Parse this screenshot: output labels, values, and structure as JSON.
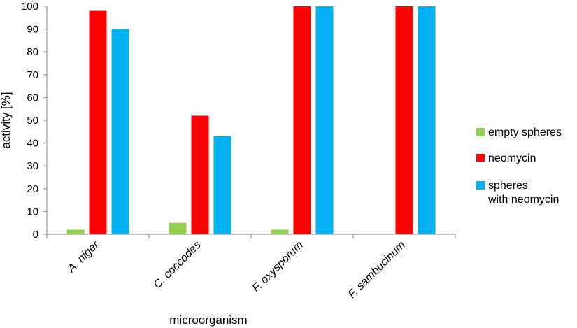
{
  "chart_data": {
    "type": "bar",
    "categories": [
      "A. niger",
      "C. coccodes",
      "F. oxysporum",
      "F. sambucinum"
    ],
    "series": [
      {
        "name": "empty spheres",
        "color": "#92d050",
        "values": [
          2,
          5,
          2,
          null
        ]
      },
      {
        "name": "neomycin",
        "color": "#ff0000",
        "values": [
          98,
          52,
          100,
          100
        ]
      },
      {
        "name": "spheres with neomycin",
        "name_lines": [
          "spheres",
          "with neomycin"
        ],
        "color": "#00b0f0",
        "values": [
          90,
          43,
          100,
          100
        ]
      }
    ],
    "xlabel": "microorganism",
    "ylabel": "activity [%]",
    "ylim": [
      0,
      100
    ],
    "yticks": [
      0,
      10,
      20,
      30,
      40,
      50,
      60,
      70,
      80,
      90,
      100
    ],
    "grid": false,
    "legend_position": "right"
  }
}
